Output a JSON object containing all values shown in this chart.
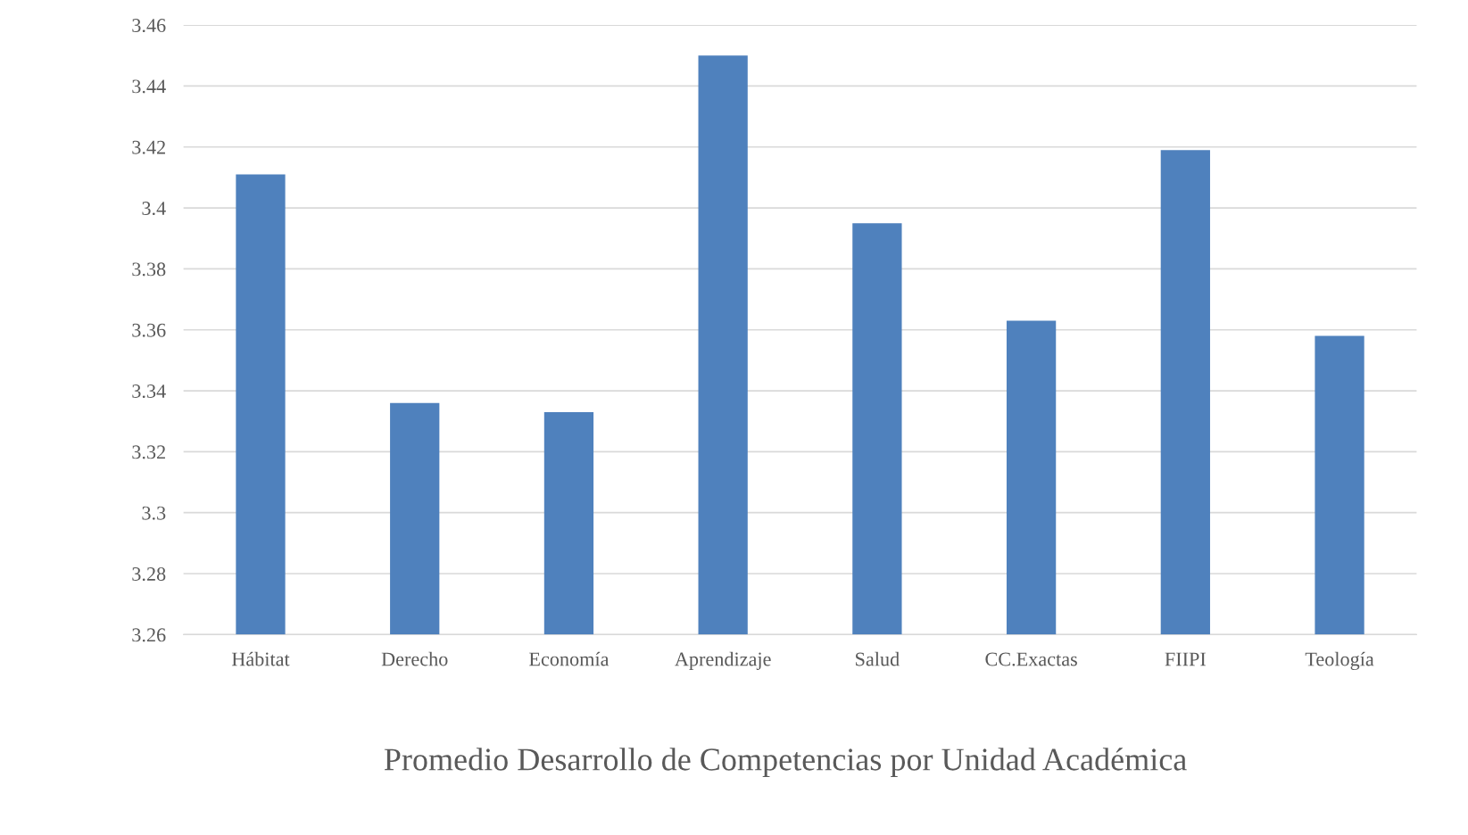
{
  "chart_data": {
    "type": "bar",
    "title": "Promedio Desarrollo de Competencias por Unidad Académica",
    "categories": [
      "Hábitat",
      "Derecho",
      "Economía",
      "Aprendizaje",
      "Salud",
      "CC.Exactas",
      "FIIPI",
      "Teología"
    ],
    "values": [
      3.411,
      3.336,
      3.333,
      3.45,
      3.395,
      3.363,
      3.419,
      3.358
    ],
    "color": "#4f81bd",
    "ylim": [
      3.26,
      3.46
    ],
    "yticks": [
      3.26,
      3.28,
      3.3,
      3.32,
      3.34,
      3.36,
      3.38,
      3.4,
      3.42,
      3.44,
      3.46
    ],
    "grid": "y"
  }
}
